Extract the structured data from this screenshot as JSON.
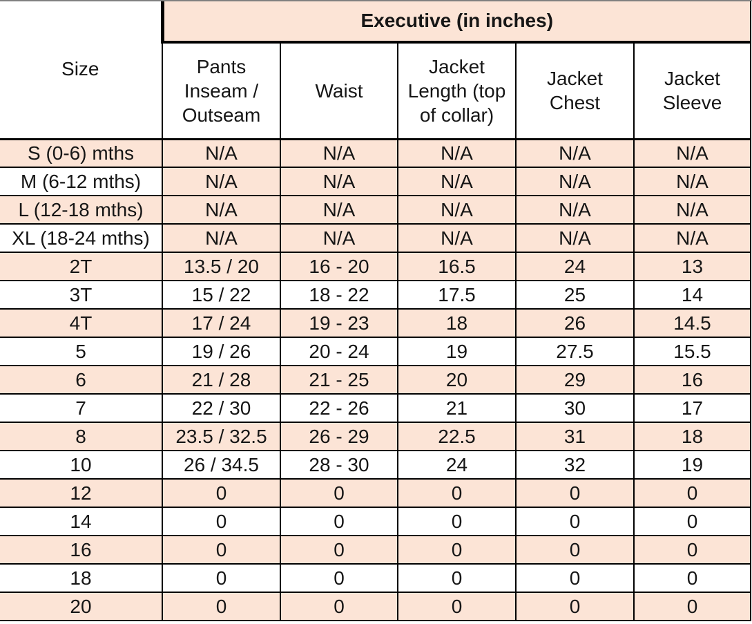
{
  "title": "Executive (in inches)",
  "columns": {
    "size": "Size",
    "data": [
      "Pants Inseam / Outseam",
      "Waist",
      "Jacket Length (top of collar)",
      "Jacket Chest",
      "Jacket Sleeve"
    ]
  },
  "colors": {
    "row_shade": "#FCE4D6",
    "border": "#000000",
    "top_edge_line": "#808080",
    "text": "#161616"
  },
  "rows": [
    {
      "size": "S (0-6) mths",
      "size_shaded": true,
      "values_shaded": true,
      "values": [
        "N/A",
        "N/A",
        "N/A",
        "N/A",
        "N/A"
      ]
    },
    {
      "size": "M (6-12 mths)",
      "size_shaded": false,
      "values_shaded": true,
      "values": [
        "N/A",
        "N/A",
        "N/A",
        "N/A",
        "N/A"
      ]
    },
    {
      "size": "L (12-18 mths)",
      "size_shaded": true,
      "values_shaded": true,
      "values": [
        "N/A",
        "N/A",
        "N/A",
        "N/A",
        "N/A"
      ]
    },
    {
      "size": "XL (18-24 mths)",
      "size_shaded": false,
      "values_shaded": true,
      "values": [
        "N/A",
        "N/A",
        "N/A",
        "N/A",
        "N/A"
      ]
    },
    {
      "size": "2T",
      "size_shaded": true,
      "values_shaded": true,
      "values": [
        "13.5 / 20",
        "16 - 20",
        "16.5",
        "24",
        "13"
      ]
    },
    {
      "size": "3T",
      "size_shaded": false,
      "values_shaded": false,
      "values": [
        "15 / 22",
        "18 - 22",
        "17.5",
        "25",
        "14"
      ]
    },
    {
      "size": "4T",
      "size_shaded": true,
      "values_shaded": true,
      "values": [
        "17 / 24",
        "19 - 23",
        "18",
        "26",
        "14.5"
      ]
    },
    {
      "size": "5",
      "size_shaded": false,
      "values_shaded": false,
      "values": [
        "19 / 26",
        "20 - 24",
        "19",
        "27.5",
        "15.5"
      ]
    },
    {
      "size": "6",
      "size_shaded": true,
      "values_shaded": true,
      "values": [
        "21 / 28",
        "21 - 25",
        "20",
        "29",
        "16"
      ]
    },
    {
      "size": "7",
      "size_shaded": false,
      "values_shaded": false,
      "values": [
        "22 / 30",
        "22 - 26",
        "21",
        "30",
        "17"
      ]
    },
    {
      "size": "8",
      "size_shaded": true,
      "values_shaded": true,
      "values": [
        "23.5 / 32.5",
        "26 - 29",
        "22.5",
        "31",
        "18"
      ]
    },
    {
      "size": "10",
      "size_shaded": false,
      "values_shaded": false,
      "values": [
        "26 / 34.5",
        "28 - 30",
        "24",
        "32",
        "19"
      ]
    },
    {
      "size": "12",
      "size_shaded": true,
      "values_shaded": true,
      "values": [
        "0",
        "0",
        "0",
        "0",
        "0"
      ]
    },
    {
      "size": "14",
      "size_shaded": false,
      "values_shaded": false,
      "values": [
        "0",
        "0",
        "0",
        "0",
        "0"
      ]
    },
    {
      "size": "16",
      "size_shaded": true,
      "values_shaded": true,
      "values": [
        "0",
        "0",
        "0",
        "0",
        "0"
      ]
    },
    {
      "size": "18",
      "size_shaded": false,
      "values_shaded": false,
      "values": [
        "0",
        "0",
        "0",
        "0",
        "0"
      ]
    },
    {
      "size": "20",
      "size_shaded": true,
      "values_shaded": true,
      "values": [
        "0",
        "0",
        "0",
        "0",
        "0"
      ]
    }
  ]
}
